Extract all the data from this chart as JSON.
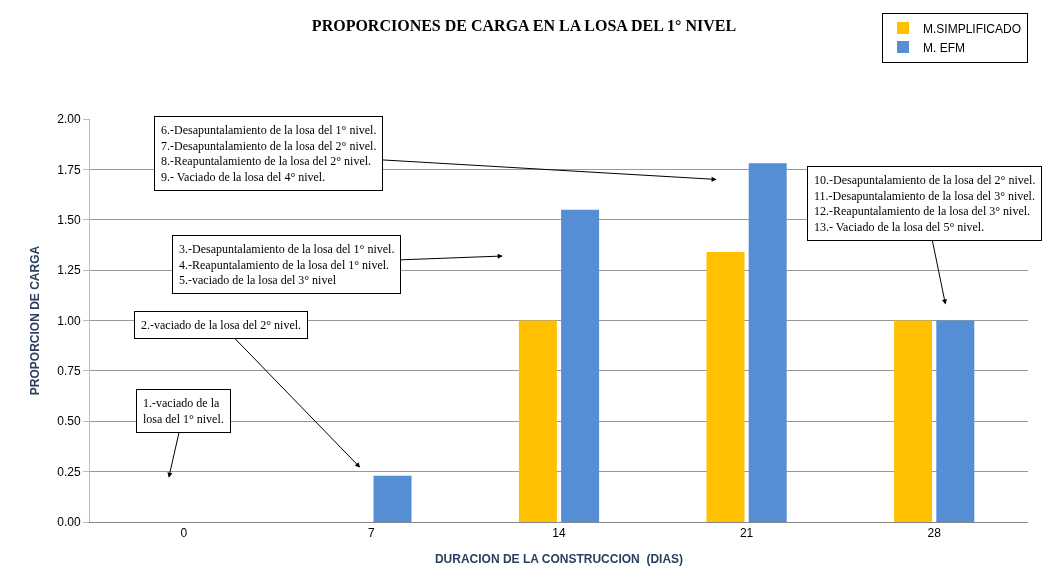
{
  "chart_data": {
    "type": "bar",
    "title": "PROPORCIONES DE CARGA EN LA LOSA DEL 1° NIVEL",
    "xlabel": "DURACION DE LA CONSTRUCCION  (DIAS)",
    "ylabel": "PROPORCION DE CARGA",
    "categories": [
      "0",
      "7",
      "14",
      "21",
      "28"
    ],
    "series": [
      {
        "name": "M.SIMPLIFICADO",
        "color": "#ffc000",
        "values": [
          0,
          0,
          1.0,
          1.34,
          1.0
        ]
      },
      {
        "name": "M. EFM",
        "color": "#558ed5",
        "values": [
          0,
          0.23,
          1.55,
          1.78,
          1.0
        ]
      }
    ],
    "ylim": [
      0,
      2
    ],
    "yticks": [
      {
        "value": 0,
        "label": "0.00"
      },
      {
        "value": 0.25,
        "label": "0.25"
      },
      {
        "value": 0.5,
        "label": "0.50"
      },
      {
        "value": 0.75,
        "label": "0.75"
      },
      {
        "value": 1,
        "label": "1.00"
      },
      {
        "value": 1.25,
        "label": "1.25"
      },
      {
        "value": 1.5,
        "label": "1.50"
      },
      {
        "value": 1.75,
        "label": "1.75"
      },
      {
        "value": 2,
        "label": "2.00"
      }
    ],
    "grid": "y",
    "legend": "top right",
    "annotations": [
      "1.-vaciado de la\nlosa del 1° nivel.",
      "2.-vaciado de la losa del 2° nivel.",
      "3.-Desapuntalamiento de la losa del 1° nivel.\n4.-Reapuntalamiento de la losa del 1° nivel.\n5.-vaciado de la losa del 3° nivel",
      "6.-Desapuntalamiento de la losa del 1° nivel.\n7.-Desapuntalamiento de la losa del 2° nivel.\n8.-Reapuntalamiento de la losa del 2° nivel.\n9.- Vaciado de la losa del 4° nivel.",
      "10.-Desapuntalamiento de la losa del 2° nivel.\n11.-Desapuntalamiento de la losa del 3° nivel.\n12.-Reapuntalamiento de la losa del 3° nivel.\n13.- Vaciado de la losa del 5° nivel."
    ]
  }
}
